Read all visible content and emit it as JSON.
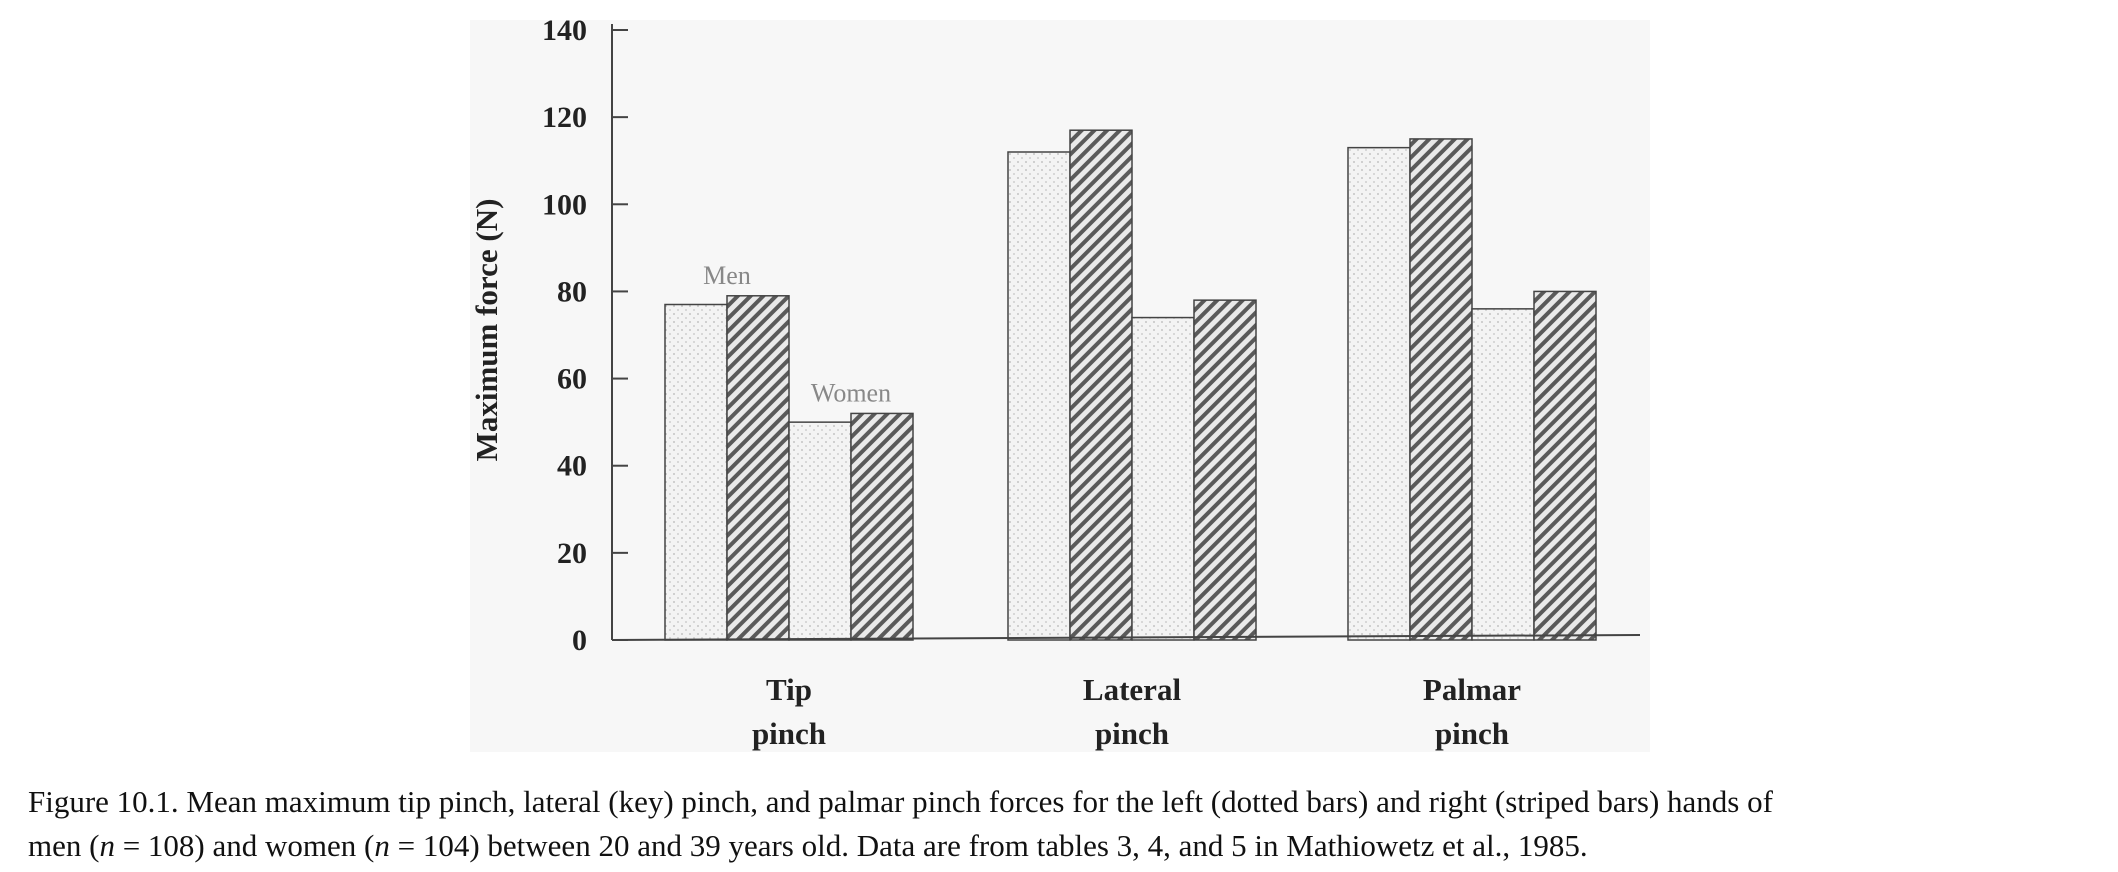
{
  "chart_data": {
    "type": "bar",
    "title": "",
    "xlabel": "",
    "ylabel": "Maximum force (N)",
    "ylim": [
      0,
      140
    ],
    "yticks": [
      0,
      20,
      40,
      60,
      80,
      100,
      120,
      140
    ],
    "grid": false,
    "categories": [
      "Tip pinch",
      "Lateral pinch",
      "Palmar pinch"
    ],
    "category_lines": [
      [
        "Tip",
        "pinch"
      ],
      [
        "Lateral",
        "pinch"
      ],
      [
        "Palmar",
        "pinch"
      ]
    ],
    "series": [
      {
        "group": "Men",
        "hand": "left",
        "pattern": "dotted",
        "values": [
          77,
          112,
          113
        ]
      },
      {
        "group": "Men",
        "hand": "right",
        "pattern": "striped",
        "values": [
          79,
          117,
          115
        ]
      },
      {
        "group": "Women",
        "hand": "left",
        "pattern": "dotted",
        "values": [
          50,
          74,
          76
        ]
      },
      {
        "group": "Women",
        "hand": "right",
        "pattern": "striped",
        "values": [
          52,
          78,
          80
        ]
      }
    ],
    "annotations": [
      {
        "text": "Men",
        "category": "Tip pinch",
        "group": "Men"
      },
      {
        "text": "Women",
        "category": "Tip pinch",
        "group": "Women"
      }
    ]
  },
  "caption": {
    "line1": "Figure 10.1. Mean maximum tip pinch, lateral (key) pinch, and palmar pinch forces for the left (dotted bars) and right (striped bars) hands of",
    "line2_a": "men (",
    "line2_n1": "n",
    "line2_b": " = 108) and women (",
    "line2_n2": "n",
    "line2_c": " = 104) between 20 and 39 years old. Data are from tables 3, 4, and 5 in Mathiowetz et al., 1985."
  }
}
